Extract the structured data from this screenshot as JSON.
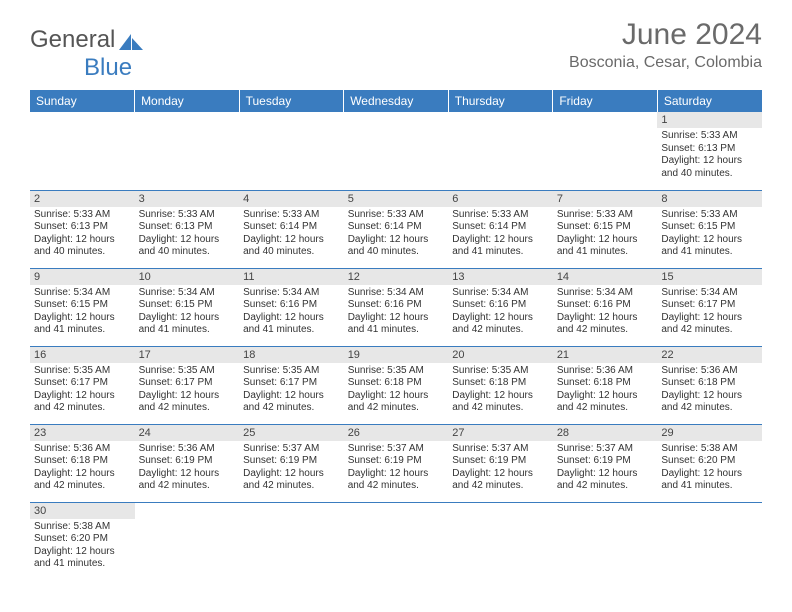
{
  "logo": {
    "text1": "General",
    "text2": "Blue"
  },
  "title": "June 2024",
  "location": "Bosconia, Cesar, Colombia",
  "headers": [
    "Sunday",
    "Monday",
    "Tuesday",
    "Wednesday",
    "Thursday",
    "Friday",
    "Saturday"
  ],
  "colors": {
    "header_bg": "#3a7cbf",
    "header_text": "#ffffff",
    "daynum_bg": "#e7e7e7",
    "rule": "#3a7cbf",
    "title_color": "#6a6a6a",
    "body_text": "#333333"
  },
  "weeks": [
    [
      null,
      null,
      null,
      null,
      null,
      null,
      {
        "n": "1",
        "sr": "5:33 AM",
        "ss": "6:13 PM",
        "dl": "12 hours and 40 minutes."
      }
    ],
    [
      {
        "n": "2",
        "sr": "5:33 AM",
        "ss": "6:13 PM",
        "dl": "12 hours and 40 minutes."
      },
      {
        "n": "3",
        "sr": "5:33 AM",
        "ss": "6:13 PM",
        "dl": "12 hours and 40 minutes."
      },
      {
        "n": "4",
        "sr": "5:33 AM",
        "ss": "6:14 PM",
        "dl": "12 hours and 40 minutes."
      },
      {
        "n": "5",
        "sr": "5:33 AM",
        "ss": "6:14 PM",
        "dl": "12 hours and 40 minutes."
      },
      {
        "n": "6",
        "sr": "5:33 AM",
        "ss": "6:14 PM",
        "dl": "12 hours and 41 minutes."
      },
      {
        "n": "7",
        "sr": "5:33 AM",
        "ss": "6:15 PM",
        "dl": "12 hours and 41 minutes."
      },
      {
        "n": "8",
        "sr": "5:33 AM",
        "ss": "6:15 PM",
        "dl": "12 hours and 41 minutes."
      }
    ],
    [
      {
        "n": "9",
        "sr": "5:34 AM",
        "ss": "6:15 PM",
        "dl": "12 hours and 41 minutes."
      },
      {
        "n": "10",
        "sr": "5:34 AM",
        "ss": "6:15 PM",
        "dl": "12 hours and 41 minutes."
      },
      {
        "n": "11",
        "sr": "5:34 AM",
        "ss": "6:16 PM",
        "dl": "12 hours and 41 minutes."
      },
      {
        "n": "12",
        "sr": "5:34 AM",
        "ss": "6:16 PM",
        "dl": "12 hours and 41 minutes."
      },
      {
        "n": "13",
        "sr": "5:34 AM",
        "ss": "6:16 PM",
        "dl": "12 hours and 42 minutes."
      },
      {
        "n": "14",
        "sr": "5:34 AM",
        "ss": "6:16 PM",
        "dl": "12 hours and 42 minutes."
      },
      {
        "n": "15",
        "sr": "5:34 AM",
        "ss": "6:17 PM",
        "dl": "12 hours and 42 minutes."
      }
    ],
    [
      {
        "n": "16",
        "sr": "5:35 AM",
        "ss": "6:17 PM",
        "dl": "12 hours and 42 minutes."
      },
      {
        "n": "17",
        "sr": "5:35 AM",
        "ss": "6:17 PM",
        "dl": "12 hours and 42 minutes."
      },
      {
        "n": "18",
        "sr": "5:35 AM",
        "ss": "6:17 PM",
        "dl": "12 hours and 42 minutes."
      },
      {
        "n": "19",
        "sr": "5:35 AM",
        "ss": "6:18 PM",
        "dl": "12 hours and 42 minutes."
      },
      {
        "n": "20",
        "sr": "5:35 AM",
        "ss": "6:18 PM",
        "dl": "12 hours and 42 minutes."
      },
      {
        "n": "21",
        "sr": "5:36 AM",
        "ss": "6:18 PM",
        "dl": "12 hours and 42 minutes."
      },
      {
        "n": "22",
        "sr": "5:36 AM",
        "ss": "6:18 PM",
        "dl": "12 hours and 42 minutes."
      }
    ],
    [
      {
        "n": "23",
        "sr": "5:36 AM",
        "ss": "6:18 PM",
        "dl": "12 hours and 42 minutes."
      },
      {
        "n": "24",
        "sr": "5:36 AM",
        "ss": "6:19 PM",
        "dl": "12 hours and 42 minutes."
      },
      {
        "n": "25",
        "sr": "5:37 AM",
        "ss": "6:19 PM",
        "dl": "12 hours and 42 minutes."
      },
      {
        "n": "26",
        "sr": "5:37 AM",
        "ss": "6:19 PM",
        "dl": "12 hours and 42 minutes."
      },
      {
        "n": "27",
        "sr": "5:37 AM",
        "ss": "6:19 PM",
        "dl": "12 hours and 42 minutes."
      },
      {
        "n": "28",
        "sr": "5:37 AM",
        "ss": "6:19 PM",
        "dl": "12 hours and 42 minutes."
      },
      {
        "n": "29",
        "sr": "5:38 AM",
        "ss": "6:20 PM",
        "dl": "12 hours and 41 minutes."
      }
    ],
    [
      {
        "n": "30",
        "sr": "5:38 AM",
        "ss": "6:20 PM",
        "dl": "12 hours and 41 minutes."
      },
      null,
      null,
      null,
      null,
      null,
      null
    ]
  ],
  "labels": {
    "sunrise": "Sunrise: ",
    "sunset": "Sunset: ",
    "daylight": "Daylight: "
  }
}
